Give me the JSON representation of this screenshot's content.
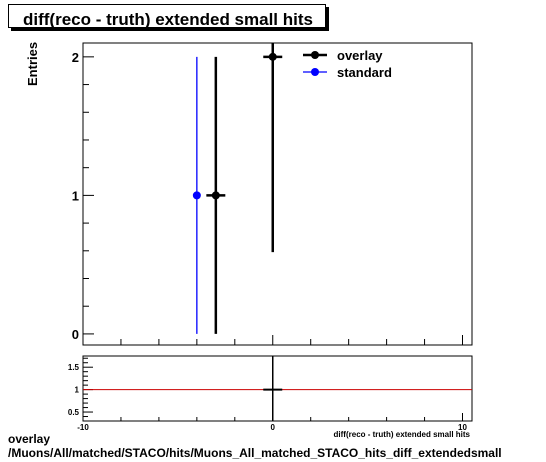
{
  "title": "diff(reco - truth) extended small hits",
  "caption": {
    "line1": "overlay",
    "line2": "/Muons/All/matched/STACO/hits/Muons_All_matched_STACO_hits_diff_extendedsmall"
  },
  "chart_data": [
    {
      "type": "scatter",
      "title": "diff(reco - truth) extended small hits",
      "ylabel": "Entries",
      "xlabel": "diff(reco - truth) extended small hits",
      "xlim": [
        -10,
        10.5
      ],
      "ylim": [
        -0.08,
        2.1
      ],
      "yticks": [
        0,
        1,
        2
      ],
      "legend_position": "top-right",
      "series": [
        {
          "name": "overlay",
          "color": "#000000",
          "points": [
            {
              "x": -3,
              "y": 1,
              "yerr": 1,
              "xerr": 0.5
            },
            {
              "x": 0,
              "y": 2,
              "yerr": 1.41,
              "xerr": 0.5
            }
          ]
        },
        {
          "name": "standard",
          "color": "#0000ff",
          "points": [
            {
              "x": -4,
              "y": 1,
              "yerr": 1,
              "xerr": 0
            }
          ]
        }
      ]
    },
    {
      "type": "line",
      "role": "ratio",
      "xlim": [
        -10,
        10.5
      ],
      "ylim": [
        0.3,
        1.75
      ],
      "xticks": [
        -10,
        0,
        10
      ],
      "yticks": [
        0.5,
        1,
        1.5
      ],
      "ytick_labels": [
        "0.5",
        "1",
        "1.5"
      ],
      "reference_line": {
        "y": 1,
        "color": "#cc0000"
      },
      "points": [
        {
          "x": 0,
          "y": 1,
          "xerr": 0.5
        }
      ],
      "vertical_line_at_x": 0
    }
  ]
}
